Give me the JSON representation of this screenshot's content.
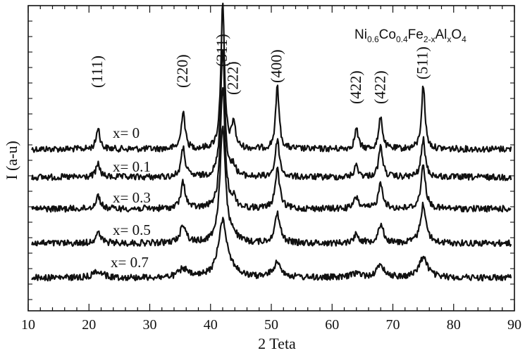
{
  "chart_data": {
    "type": "line",
    "title": "",
    "xlabel": "2 Teta",
    "ylabel": "I (a-u)",
    "xlim": [
      10,
      90
    ],
    "x_ticks": [
      10,
      20,
      30,
      40,
      50,
      60,
      70,
      80,
      90
    ],
    "x_tick_labels": [
      "10",
      "20",
      "30",
      "40",
      "50",
      "60",
      "70",
      "80",
      "90"
    ],
    "grid": false,
    "y_ticks_unlabeled": true,
    "annotation": {
      "formula_parts": [
        {
          "text": "Ni",
          "sub": false
        },
        {
          "text": "0.6",
          "sub": true
        },
        {
          "text": "Co",
          "sub": false
        },
        {
          "text": "0.4",
          "sub": true
        },
        {
          "text": "Fe",
          "sub": false
        },
        {
          "text": "2-x",
          "sub": true
        },
        {
          "text": "Al",
          "sub": false
        },
        {
          "text": "x",
          "sub": true
        },
        {
          "text": "O",
          "sub": false
        },
        {
          "text": "4",
          "sub": true
        }
      ]
    },
    "peaks": [
      {
        "label": "(111)",
        "two_theta": 21.5
      },
      {
        "label": "(220)",
        "two_theta": 35.5
      },
      {
        "label": "(311)",
        "two_theta": 42.0
      },
      {
        "label": "(222)",
        "two_theta": 43.8
      },
      {
        "label": "(400)",
        "two_theta": 51.0
      },
      {
        "label": "(422)",
        "two_theta": 64.0
      },
      {
        "label": "(422)",
        "two_theta": 68.0
      },
      {
        "label": "(511)",
        "two_theta": 75.0
      }
    ],
    "series": [
      {
        "name": "x= 0",
        "peak_heights": [
          0.15,
          0.27,
          1.0,
          0.18,
          0.43,
          0.14,
          0.23,
          0.44
        ],
        "width": 0.35
      },
      {
        "name": "x= 0.1",
        "peak_heights": [
          0.09,
          0.2,
          0.9,
          0.07,
          0.26,
          0.08,
          0.21,
          0.26
        ],
        "width": 0.4
      },
      {
        "name": "x= 0.3",
        "peak_heights": [
          0.09,
          0.18,
          0.85,
          0.06,
          0.27,
          0.08,
          0.18,
          0.3
        ],
        "width": 0.45
      },
      {
        "name": "x= 0.5",
        "peak_heights": [
          0.07,
          0.13,
          0.8,
          0.05,
          0.2,
          0.06,
          0.13,
          0.27
        ],
        "width": 0.55
      },
      {
        "name": "x= 0.7",
        "peak_heights": [
          0.05,
          0.06,
          0.4,
          0.03,
          0.1,
          0.03,
          0.08,
          0.14
        ],
        "width": 0.85
      }
    ]
  }
}
